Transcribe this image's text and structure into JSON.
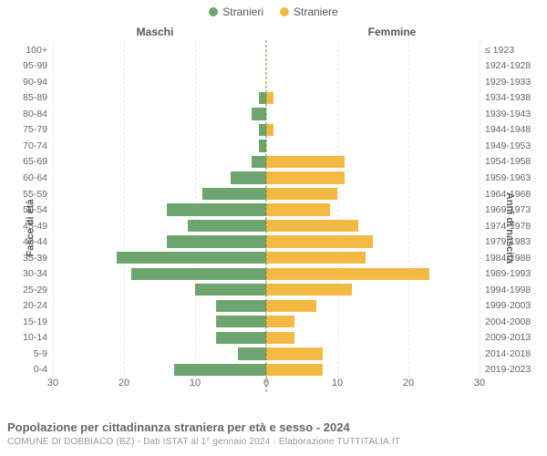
{
  "legend": {
    "male": {
      "label": "Stranieri",
      "color": "#6ea56e"
    },
    "female": {
      "label": "Straniere",
      "color": "#f4b942"
    }
  },
  "headers": {
    "male": "Maschi",
    "female": "Femmine"
  },
  "axis_titles": {
    "left": "Fasce di età",
    "right": "Anni di nascita"
  },
  "x_axis": {
    "max": 30,
    "step": 10,
    "ticks": [
      30,
      20,
      10,
      0,
      10,
      20,
      30
    ]
  },
  "chart": {
    "type": "population-pyramid",
    "background_color": "#ffffff",
    "grid_color": "#e6e6e6",
    "zero_line_color": "#6b8e23",
    "bar_border": "#ffffff",
    "label_fontsize": 10.5,
    "axis_fontsize": 11
  },
  "rows": [
    {
      "age": "100+",
      "birth": "≤ 1923",
      "m": 0,
      "f": 0
    },
    {
      "age": "95-99",
      "birth": "1924-1928",
      "m": 0,
      "f": 0
    },
    {
      "age": "90-94",
      "birth": "1929-1933",
      "m": 0,
      "f": 0
    },
    {
      "age": "85-89",
      "birth": "1934-1938",
      "m": 1,
      "f": 1
    },
    {
      "age": "80-84",
      "birth": "1939-1943",
      "m": 2,
      "f": 0
    },
    {
      "age": "75-79",
      "birth": "1944-1948",
      "m": 1,
      "f": 1
    },
    {
      "age": "70-74",
      "birth": "1949-1953",
      "m": 1,
      "f": 0
    },
    {
      "age": "65-69",
      "birth": "1954-1958",
      "m": 2,
      "f": 11
    },
    {
      "age": "60-64",
      "birth": "1959-1963",
      "m": 5,
      "f": 11
    },
    {
      "age": "55-59",
      "birth": "1964-1968",
      "m": 9,
      "f": 10
    },
    {
      "age": "50-54",
      "birth": "1969-1973",
      "m": 14,
      "f": 9
    },
    {
      "age": "45-49",
      "birth": "1974-1978",
      "m": 11,
      "f": 13
    },
    {
      "age": "40-44",
      "birth": "1979-1983",
      "m": 14,
      "f": 15
    },
    {
      "age": "35-39",
      "birth": "1984-1988",
      "m": 21,
      "f": 14
    },
    {
      "age": "30-34",
      "birth": "1989-1993",
      "m": 19,
      "f": 23
    },
    {
      "age": "25-29",
      "birth": "1994-1998",
      "m": 10,
      "f": 12
    },
    {
      "age": "20-24",
      "birth": "1999-2003",
      "m": 7,
      "f": 7
    },
    {
      "age": "15-19",
      "birth": "2004-2008",
      "m": 7,
      "f": 4
    },
    {
      "age": "10-14",
      "birth": "2009-2013",
      "m": 7,
      "f": 4
    },
    {
      "age": "5-9",
      "birth": "2014-2018",
      "m": 4,
      "f": 8
    },
    {
      "age": "0-4",
      "birth": "2019-2023",
      "m": 13,
      "f": 8
    }
  ],
  "footer": {
    "title": "Popolazione per cittadinanza straniera per età e sesso - 2024",
    "subtitle": "COMUNE DI DOBBIACO (BZ) - Dati ISTAT al 1° gennaio 2024 - Elaborazione TUTTITALIA.IT"
  }
}
